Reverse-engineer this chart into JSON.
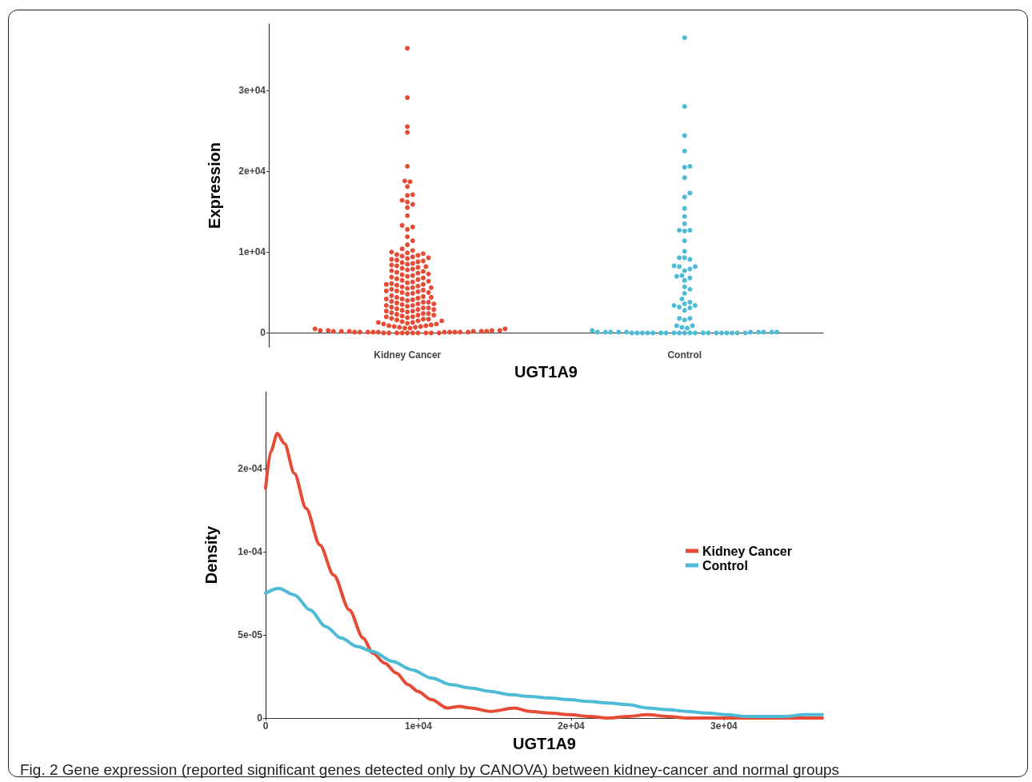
{
  "chart_data": [
    {
      "type": "scatter",
      "categories": [
        "Kidney Cancer",
        "Control"
      ],
      "xlabel": "UGT1A9",
      "ylabel": "Expression",
      "ylim": [
        -1750,
        38200
      ],
      "yticks": [
        {
          "value": 0,
          "label": "0"
        },
        {
          "value": 10000,
          "label": "1e+04"
        },
        {
          "value": 20000,
          "label": "2e+04"
        },
        {
          "value": 30000,
          "label": "3e+04"
        }
      ],
      "grid": false,
      "marker": "circle",
      "series": [
        {
          "color": "#e64b35",
          "x": [
            "Kidney Cancer",
            "Kidney Cancer",
            "Kidney Cancer",
            "Kidney Cancer",
            "Kidney Cancer",
            "Kidney Cancer",
            "Kidney Cancer",
            "Kidney Cancer",
            "Kidney Cancer",
            "Kidney Cancer",
            "Kidney Cancer",
            "Kidney Cancer",
            "Kidney Cancer",
            "Kidney Cancer",
            "Kidney Cancer",
            "Kidney Cancer",
            "Kidney Cancer",
            "Kidney Cancer",
            "Kidney Cancer",
            "Kidney Cancer",
            "Kidney Cancer",
            "Kidney Cancer",
            "Kidney Cancer",
            "Kidney Cancer",
            "Kidney Cancer",
            "Kidney Cancer",
            "Kidney Cancer",
            "Kidney Cancer",
            "Kidney Cancer",
            "Kidney Cancer",
            "Kidney Cancer",
            "Kidney Cancer",
            "Kidney Cancer",
            "Kidney Cancer",
            "Kidney Cancer",
            "Kidney Cancer",
            "Kidney Cancer",
            "Kidney Cancer",
            "Kidney Cancer",
            "Kidney Cancer",
            "Kidney Cancer",
            "Kidney Cancer",
            "Kidney Cancer",
            "Kidney Cancer",
            "Kidney Cancer",
            "Kidney Cancer",
            "Kidney Cancer",
            "Kidney Cancer",
            "Kidney Cancer",
            "Kidney Cancer",
            "Kidney Cancer",
            "Kidney Cancer",
            "Kidney Cancer",
            "Kidney Cancer",
            "Kidney Cancer",
            "Kidney Cancer",
            "Kidney Cancer",
            "Kidney Cancer",
            "Kidney Cancer",
            "Kidney Cancer",
            "Kidney Cancer",
            "Kidney Cancer",
            "Kidney Cancer",
            "Kidney Cancer",
            "Kidney Cancer",
            "Kidney Cancer",
            "Kidney Cancer",
            "Kidney Cancer",
            "Kidney Cancer",
            "Kidney Cancer",
            "Kidney Cancer",
            "Kidney Cancer",
            "Kidney Cancer",
            "Kidney Cancer",
            "Kidney Cancer",
            "Kidney Cancer",
            "Kidney Cancer",
            "Kidney Cancer",
            "Kidney Cancer",
            "Kidney Cancer",
            "Kidney Cancer",
            "Kidney Cancer",
            "Kidney Cancer",
            "Kidney Cancer",
            "Kidney Cancer",
            "Kidney Cancer",
            "Kidney Cancer",
            "Kidney Cancer",
            "Kidney Cancer",
            "Kidney Cancer",
            "Kidney Cancer",
            "Kidney Cancer",
            "Kidney Cancer",
            "Kidney Cancer",
            "Kidney Cancer",
            "Kidney Cancer",
            "Kidney Cancer",
            "Kidney Cancer",
            "Kidney Cancer",
            "Kidney Cancer",
            "Kidney Cancer",
            "Kidney Cancer",
            "Kidney Cancer",
            "Kidney Cancer",
            "Kidney Cancer",
            "Kidney Cancer",
            "Kidney Cancer",
            "Kidney Cancer",
            "Kidney Cancer",
            "Kidney Cancer",
            "Kidney Cancer",
            "Kidney Cancer",
            "Kidney Cancer",
            "Kidney Cancer",
            "Kidney Cancer",
            "Kidney Cancer",
            "Kidney Cancer",
            "Kidney Cancer",
            "Kidney Cancer",
            "Kidney Cancer",
            "Kidney Cancer",
            "Kidney Cancer",
            "Kidney Cancer",
            "Kidney Cancer",
            "Kidney Cancer",
            "Kidney Cancer",
            "Kidney Cancer",
            "Kidney Cancer",
            "Kidney Cancer",
            "Kidney Cancer",
            "Kidney Cancer",
            "Kidney Cancer",
            "Kidney Cancer",
            "Kidney Cancer",
            "Kidney Cancer",
            "Kidney Cancer",
            "Kidney Cancer",
            "Kidney Cancer",
            "Kidney Cancer",
            "Kidney Cancer",
            "Kidney Cancer",
            "Kidney Cancer",
            "Kidney Cancer",
            "Kidney Cancer",
            "Kidney Cancer",
            "Kidney Cancer",
            "Kidney Cancer",
            "Kidney Cancer",
            "Kidney Cancer",
            "Kidney Cancer",
            "Kidney Cancer",
            "Kidney Cancer",
            "Kidney Cancer",
            "Kidney Cancer",
            "Kidney Cancer",
            "Kidney Cancer",
            "Kidney Cancer",
            "Kidney Cancer",
            "Kidney Cancer",
            "Kidney Cancer",
            "Kidney Cancer",
            "Kidney Cancer",
            "Kidney Cancer",
            "Kidney Cancer",
            "Kidney Cancer",
            "Kidney Cancer",
            "Kidney Cancer",
            "Kidney Cancer",
            "Kidney Cancer",
            "Kidney Cancer",
            "Kidney Cancer",
            "Kidney Cancer"
          ],
          "values": [
            0,
            0,
            0,
            0,
            0,
            0,
            0,
            0,
            0,
            0,
            100,
            100,
            100,
            100,
            100,
            100,
            100,
            100,
            100,
            100,
            200,
            200,
            200,
            200,
            200,
            200,
            300,
            300,
            300,
            300,
            500,
            500,
            600,
            600,
            700,
            700,
            800,
            800,
            900,
            900,
            1000,
            1100,
            1200,
            1300,
            1400,
            1500,
            1600,
            1700,
            1800,
            1900,
            1100,
            1300,
            1500,
            1700,
            2000,
            2100,
            2200,
            2300,
            2400,
            2500,
            2000,
            2200,
            2400,
            2600,
            2700,
            2800,
            2900,
            3000,
            3100,
            3200,
            2700,
            2900,
            3100,
            3300,
            3400,
            3500,
            3600,
            3700,
            3800,
            3900,
            3400,
            3600,
            3800,
            4000,
            4100,
            4200,
            4300,
            4400,
            4500,
            4600,
            4200,
            4400,
            4800,
            4900,
            5000,
            5100,
            5200,
            5300,
            5400,
            5500,
            5000,
            5200,
            5600,
            5700,
            5800,
            5900,
            6000,
            6100,
            6200,
            6300,
            5600,
            6000,
            6500,
            6600,
            6700,
            6800,
            7000,
            7100,
            7200,
            7400,
            6400,
            6900,
            7500,
            7600,
            7800,
            7900,
            8000,
            8100,
            8300,
            8500,
            7300,
            7700,
            8200,
            8600,
            8700,
            8800,
            9000,
            9200,
            9400,
            9500,
            8400,
            8900,
            9100,
            9300,
            9600,
            9700,
            9800,
            9900,
            10000,
            10200,
            10400,
            10900,
            11400,
            11900,
            12800,
            13100,
            13300,
            14500,
            15500,
            15900,
            16200,
            16400,
            17000,
            17100,
            18100,
            18700,
            18800,
            20600,
            24800,
            25500,
            29100,
            35200
          ]
        },
        {
          "color": "#4dbbd5",
          "x": [
            "Control",
            "Control",
            "Control",
            "Control",
            "Control",
            "Control",
            "Control",
            "Control",
            "Control",
            "Control",
            "Control",
            "Control",
            "Control",
            "Control",
            "Control",
            "Control",
            "Control",
            "Control",
            "Control",
            "Control",
            "Control",
            "Control",
            "Control",
            "Control",
            "Control",
            "Control",
            "Control",
            "Control",
            "Control",
            "Control",
            "Control",
            "Control",
            "Control",
            "Control",
            "Control",
            "Control",
            "Control",
            "Control",
            "Control",
            "Control",
            "Control",
            "Control",
            "Control",
            "Control",
            "Control",
            "Control",
            "Control",
            "Control",
            "Control",
            "Control",
            "Control",
            "Control",
            "Control",
            "Control",
            "Control",
            "Control",
            "Control",
            "Control",
            "Control",
            "Control",
            "Control",
            "Control",
            "Control",
            "Control",
            "Control",
            "Control",
            "Control",
            "Control",
            "Control",
            "Control",
            "Control",
            "Control",
            "Control",
            "Control",
            "Control",
            "Control",
            "Control",
            "Control"
          ],
          "values": [
            0,
            0,
            0,
            0,
            0,
            0,
            0,
            0,
            0,
            0,
            0,
            0,
            0,
            0,
            0,
            0,
            0,
            0,
            0,
            0,
            100,
            100,
            100,
            100,
            100,
            100,
            100,
            100,
            100,
            100,
            300,
            600,
            700,
            900,
            900,
            1600,
            1800,
            1800,
            2800,
            3100,
            3200,
            3400,
            3400,
            3600,
            3800,
            4200,
            4900,
            5400,
            5700,
            6500,
            6800,
            7100,
            7000,
            7700,
            7900,
            8200,
            8200,
            8300,
            9300,
            9100,
            9300,
            10100,
            11400,
            12600,
            12700,
            12700,
            13500,
            14400,
            15400,
            16800,
            17300,
            19200,
            20500,
            20600,
            22500,
            24400,
            28000,
            36500
          ]
        }
      ]
    },
    {
      "type": "line",
      "xlabel": "UGT1A9",
      "ylabel": "Density",
      "xlim": [
        0,
        36500
      ],
      "ylim": [
        0,
        0.000196
      ],
      "xticks": [
        {
          "value": 0,
          "label": "0"
        },
        {
          "value": 10000,
          "label": "1e+04"
        },
        {
          "value": 20000,
          "label": "2e+04"
        },
        {
          "value": 30000,
          "label": "3e+04"
        }
      ],
      "yticks": [
        {
          "value": 0,
          "label": "0"
        },
        {
          "value": 5e-05,
          "label": "5e-05"
        },
        {
          "value": 0.0001,
          "label": "1e-04"
        },
        {
          "value": 0.00015,
          "label": "2e-04"
        }
      ],
      "grid": false,
      "legend": "right",
      "marker": "none",
      "line_style": "solid",
      "annotations": [
        "Fig. 2 Gene expression (reported significant genes detected only by CANOVA) between kidney-cancer and normal groups"
      ],
      "series": [
        {
          "name": "Kidney Cancer",
          "color": "#e64b35",
          "x": [
            0,
            330,
            770,
            1230,
            1880,
            2650,
            3550,
            4450,
            5480,
            6380,
            7020,
            7790,
            8560,
            9330,
            9970,
            10870,
            11900,
            12670,
            13450,
            14730,
            16270,
            17300,
            18590,
            19870,
            21160,
            22440,
            23730,
            25010,
            26300,
            27580,
            30150,
            32730,
            36450
          ],
          "values": [
            0.000138,
            0.00016,
            0.000171,
            0.000165,
            0.000147,
            0.000126,
            0.000104,
            8.6e-05,
            6.5e-05,
            4.8e-05,
            3.9e-05,
            3.3e-05,
            2.7e-05,
            2e-05,
            1.6e-05,
            1.1e-05,
            6e-06,
            7e-06,
            6e-06,
            4e-06,
            6e-06,
            4e-06,
            3e-06,
            2e-06,
            1e-06,
            0,
            1e-06,
            2e-06,
            1e-06,
            0,
            0,
            0,
            0
          ]
        },
        {
          "name": "Control",
          "color": "#4dbbd5",
          "x": [
            0,
            850,
            1880,
            2910,
            3930,
            4960,
            5990,
            7020,
            8300,
            9590,
            10870,
            12160,
            13450,
            14730,
            16020,
            17300,
            18590,
            19870,
            21160,
            22440,
            23730,
            25010,
            26300,
            27580,
            28870,
            30150,
            31440,
            32730,
            34010,
            35300,
            36450
          ],
          "values": [
            7.5e-05,
            7.8e-05,
            7.4e-05,
            6.5e-05,
            5.5e-05,
            4.8e-05,
            4.3e-05,
            4e-05,
            3.4e-05,
            2.9e-05,
            2.4e-05,
            2e-05,
            1.8e-05,
            1.6e-05,
            1.4e-05,
            1.3e-05,
            1.2e-05,
            1.1e-05,
            1e-05,
            9e-06,
            8e-06,
            6e-06,
            5e-06,
            4e-06,
            3e-06,
            2e-06,
            1e-06,
            1e-06,
            1e-06,
            2e-06,
            2e-06
          ]
        }
      ]
    }
  ]
}
